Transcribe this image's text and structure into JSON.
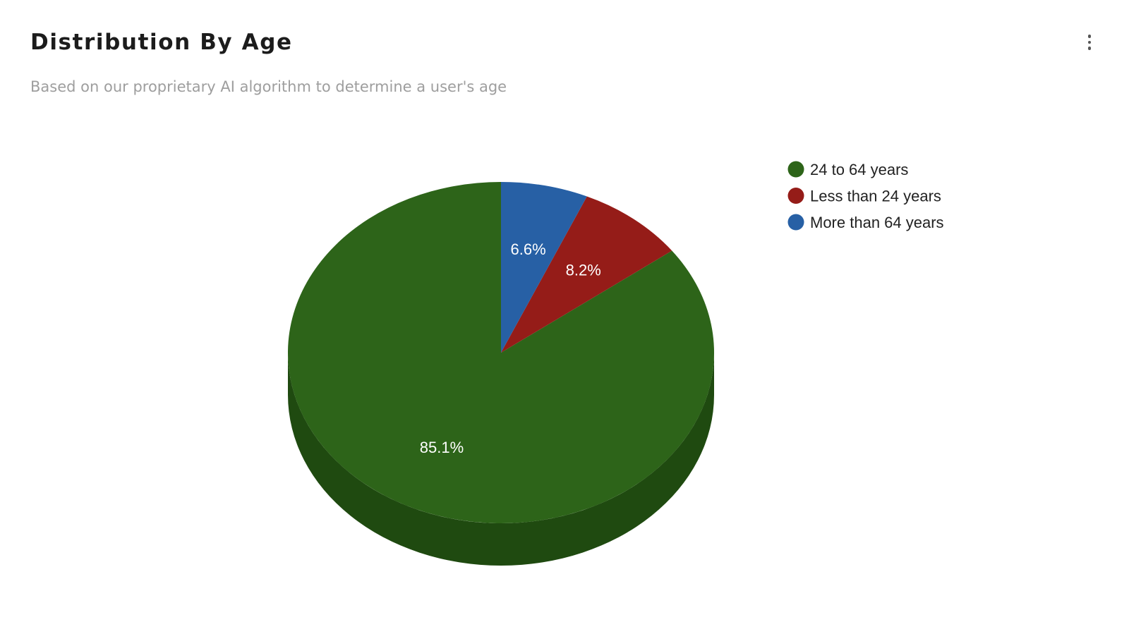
{
  "header": {
    "title": "Distribution By Age",
    "subtitle": "Based on our proprietary AI algorithm to determine a user's age",
    "menu_icon": "more-vertical-icon"
  },
  "chart_data": {
    "type": "pie",
    "style": "3d",
    "legend_position": "right",
    "title": "",
    "slices": [
      {
        "label": "24 to 64 years",
        "value": 85.1,
        "display": "85.1%",
        "color": "#2d6419",
        "side_color": "#1f4a10"
      },
      {
        "label": "Less than 24 years",
        "value": 8.2,
        "display": "8.2%",
        "color": "#951c18",
        "side_color": "#6e1411"
      },
      {
        "label": "More than 64 years",
        "value": 6.6,
        "display": "6.6%",
        "color": "#2760a5",
        "side_color": "#1c4679"
      }
    ]
  }
}
